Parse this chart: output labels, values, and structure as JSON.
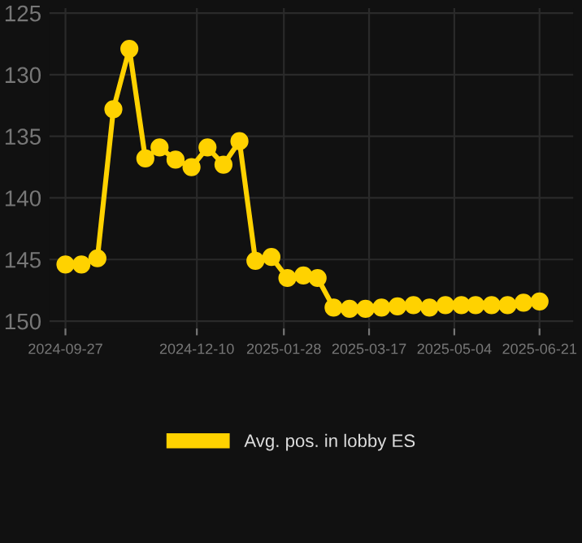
{
  "chart_data": {
    "type": "line",
    "x": [
      "2024-09-27",
      "2024-10-06",
      "2024-10-15",
      "2024-10-24",
      "2024-11-02",
      "2024-11-11",
      "2024-11-19",
      "2024-11-28",
      "2024-12-07",
      "2024-12-16",
      "2024-12-25",
      "2025-01-03",
      "2025-01-12",
      "2025-01-21",
      "2025-01-30",
      "2025-02-08",
      "2025-02-16",
      "2025-02-25",
      "2025-03-06",
      "2025-03-15",
      "2025-03-24",
      "2025-04-02",
      "2025-04-11",
      "2025-04-20",
      "2025-04-29",
      "2025-05-08",
      "2025-05-16",
      "2025-05-25",
      "2025-06-03",
      "2025-06-12",
      "2025-06-21"
    ],
    "series": [
      {
        "name": "Avg. pos. in lobby ES",
        "color": "#ffd200",
        "values": [
          145.4,
          145.4,
          144.9,
          132.8,
          127.9,
          136.8,
          135.9,
          136.9,
          137.5,
          135.9,
          137.3,
          135.4,
          145.1,
          144.8,
          146.5,
          146.3,
          146.5,
          148.9,
          149.0,
          149.0,
          148.9,
          148.8,
          148.7,
          148.9,
          148.7,
          148.7,
          148.7,
          148.7,
          148.7,
          148.5,
          148.4
        ]
      }
    ],
    "ylim": [
      150.6,
      124.6
    ],
    "yticks": [
      125,
      130,
      135,
      140,
      145,
      150
    ],
    "xlim": [
      "2024-09-18",
      "2025-07-10"
    ],
    "xticks": [
      "2024-09-27",
      "2024-12-10",
      "2025-01-28",
      "2025-03-17",
      "2025-05-04",
      "2025-06-21"
    ],
    "grid": true,
    "legend": "bottom",
    "marker": "circle",
    "line_style": "solid"
  }
}
